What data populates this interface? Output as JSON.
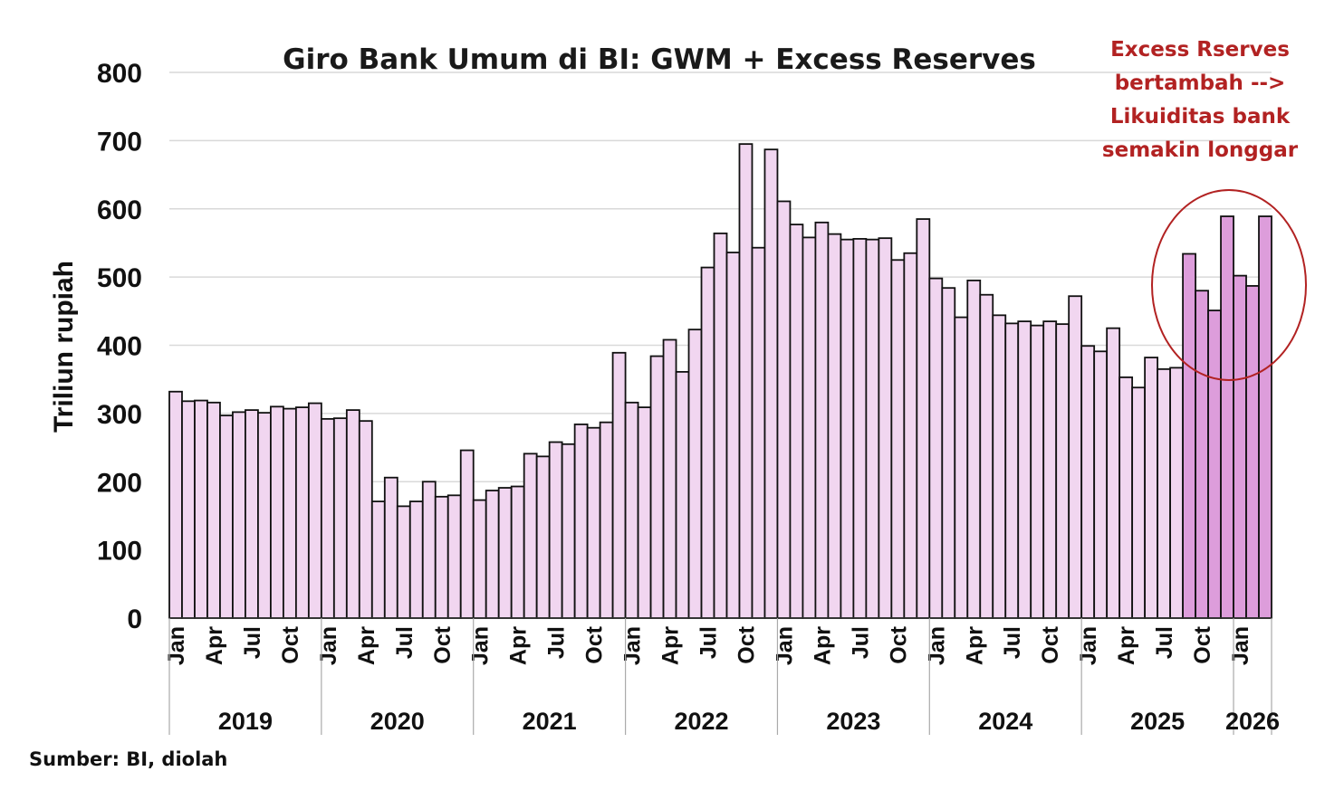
{
  "chart_data": {
    "type": "bar",
    "title": "Giro Bank Umum di BI: GWM + Excess Reserves",
    "ylabel": "Triliun rupiah",
    "xlabel": "",
    "ylim": [
      0,
      800
    ],
    "yticks": [
      "0",
      "100",
      "200",
      "300",
      "400",
      "500",
      "600",
      "700",
      "800"
    ],
    "grid": "horizontal",
    "month_tick_labels": [
      "Jan",
      "Apr",
      "Jul",
      "Oct"
    ],
    "years": [
      "2019",
      "2020",
      "2021",
      "2022",
      "2023",
      "2024",
      "2025",
      "2026"
    ],
    "values": [
      332,
      318,
      319,
      316,
      297,
      302,
      305,
      301,
      310,
      307,
      309,
      315,
      292,
      293,
      305,
      289,
      171,
      206,
      164,
      171,
      200,
      178,
      180,
      246,
      173,
      187,
      191,
      193,
      241,
      237,
      258,
      255,
      284,
      279,
      287,
      389,
      316,
      309,
      384,
      408,
      361,
      423,
      514,
      564,
      536,
      695,
      543,
      687,
      611,
      577,
      558,
      580,
      563,
      555,
      556,
      555,
      557,
      525,
      535,
      585,
      498,
      484,
      441,
      495,
      474,
      444,
      432,
      435,
      429,
      435,
      431,
      472,
      399,
      391,
      425,
      353,
      338,
      382,
      365,
      367,
      534,
      480,
      451,
      589,
      502,
      487,
      589
    ],
    "highlight_from_index": 80,
    "colors": {
      "normal": "#f1d6f0",
      "highlight": "#dd9ddb",
      "outline": "#111111",
      "grid": "#d9d9d9",
      "annotation": "#b22222"
    },
    "annotation": [
      "Excess Rserves",
      "bertambah -->",
      "Likuiditas bank",
      "semakin longgar"
    ]
  },
  "source": "Sumber: BI, diolah"
}
